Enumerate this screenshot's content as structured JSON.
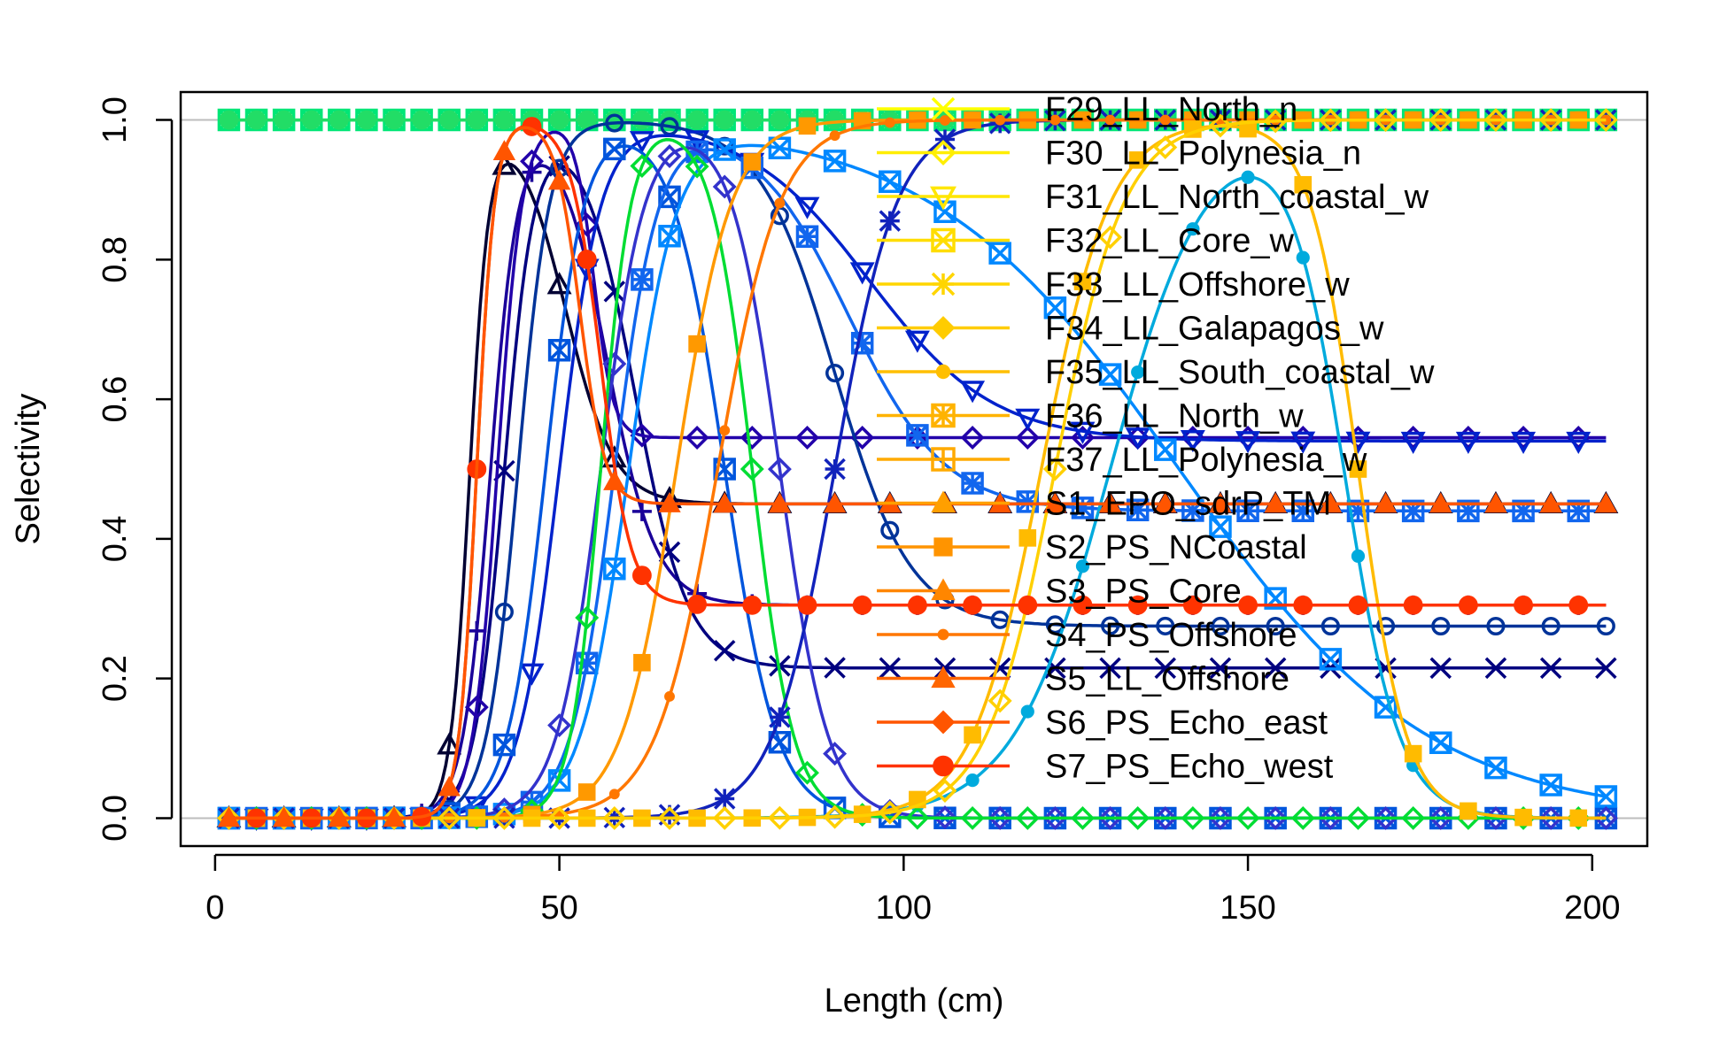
{
  "chart_data": {
    "type": "line",
    "title": "",
    "xlabel": "Length (cm)",
    "ylabel": "Selectivity",
    "xlim": [
      -5,
      208
    ],
    "ylim": [
      -0.04,
      1.04
    ],
    "xticks": [
      0,
      50,
      100,
      150,
      200
    ],
    "yticks": [
      0.0,
      0.2,
      0.4,
      0.6,
      0.8,
      1.0
    ],
    "xtick_labels": [
      "0",
      "50",
      "100",
      "150",
      "200"
    ],
    "ytick_labels": [
      "0.0",
      "0.2",
      "0.4",
      "0.6",
      "0.8",
      "1.0"
    ],
    "grid": "horizontal reference lines at 0 and 1",
    "legend_position": "top-right (inside plot)",
    "x": [
      2,
      6,
      10,
      14,
      18,
      22,
      26,
      30,
      34,
      38,
      42,
      46,
      50,
      54,
      58,
      62,
      66,
      70,
      74,
      78,
      82,
      86,
      90,
      94,
      98,
      102,
      106,
      110,
      114,
      118,
      122,
      126,
      130,
      134,
      138,
      142,
      146,
      150,
      154,
      158,
      162,
      166,
      170,
      174,
      178,
      182,
      186,
      190,
      194,
      198,
      202
    ],
    "legend_series": [
      {
        "name": "F29_LL_North_n",
        "color": "#ffff00",
        "marker": "x"
      },
      {
        "name": "F30_LL_Polynesia_n",
        "color": "#ffee00",
        "marker": "diamond"
      },
      {
        "name": "F31_LL_North_coastal_w",
        "color": "#ffe600",
        "marker": "tri-down"
      },
      {
        "name": "F32_LL_Core_w",
        "color": "#ffdd00",
        "marker": "square-x"
      },
      {
        "name": "F33_LL_Offshore_w",
        "color": "#ffd500",
        "marker": "star"
      },
      {
        "name": "F34_LL_Galapagos_w",
        "color": "#ffcc00",
        "marker": "diamond-filled"
      },
      {
        "name": "F35_LL_South_coastal_w",
        "color": "#ffbf00",
        "marker": "dot"
      },
      {
        "name": "F36_LL_North_w",
        "color": "#ffb300",
        "marker": "star-square"
      },
      {
        "name": "F37_LL_Polynesia_w",
        "color": "#ffaa00",
        "marker": "square-plus"
      },
      {
        "name": "S1_EPO_sdrP_TM",
        "color": "#ff9f00",
        "marker": "tri-filled"
      },
      {
        "name": "S2_PS_NCoastal",
        "color": "#ff9400",
        "marker": "square"
      },
      {
        "name": "S3_PS_Core",
        "color": "#ff8600",
        "marker": "tri-filled"
      },
      {
        "name": "S4_PS_Offshore",
        "color": "#ff7700",
        "marker": "dot-small"
      },
      {
        "name": "S5_LL_Offshore",
        "color": "#ff6600",
        "marker": "tri-filled"
      },
      {
        "name": "S6_PS_Echo_east",
        "color": "#ff5500",
        "marker": "diamond-filled"
      },
      {
        "name": "S7_PS_Echo_west",
        "color": "#ff3300",
        "marker": "circle-filled"
      }
    ],
    "series": [
      {
        "color": "#00e676",
        "marker": "square-x",
        "shape": "flat",
        "value": 1.0
      },
      {
        "color": "#22dd66",
        "marker": "circle-filled",
        "shape": "flat",
        "value": 1.0
      },
      {
        "color": "#000033",
        "marker": "tri",
        "shape": "dome",
        "asc_mid": 37,
        "asc_w": 1.4,
        "desc_mid": 51,
        "desc_w": 3.5,
        "plateau": 0.45
      },
      {
        "color": "#1a0099",
        "marker": "plus",
        "shape": "dome",
        "asc_mid": 40,
        "asc_w": 2.0,
        "desc_mid": 57,
        "desc_w": 3.5,
        "plateau": 0.305
      },
      {
        "color": "#00007f",
        "marker": "x",
        "shape": "dome",
        "asc_mid": 42,
        "asc_w": 2.2,
        "desc_mid": 61,
        "desc_w": 3.8,
        "plateau": 0.215
      },
      {
        "color": "#2200aa",
        "marker": "diamond",
        "shape": "dome",
        "asc_mid": 41,
        "asc_w": 1.8,
        "desc_mid": 55,
        "desc_w": 1.4,
        "plateau": 0.545
      },
      {
        "color": "#003399",
        "marker": "circle",
        "shape": "dome",
        "asc_mid": 44,
        "asc_w": 2.3,
        "desc_mid": 90,
        "desc_w": 5.5,
        "plateau": 0.275
      },
      {
        "color": "#0022cc",
        "marker": "tri-down",
        "shape": "dome",
        "asc_mid": 50,
        "asc_w": 3.0,
        "desc_mid": 95,
        "desc_w": 9.0,
        "plateau": 0.54
      },
      {
        "color": "#0055dd",
        "marker": "square-x",
        "shape": "dome",
        "asc_mid": 48,
        "asc_w": 2.8,
        "desc_mid": 74,
        "desc_w": 3.8,
        "plateau": 0.0
      },
      {
        "color": "#1166ee",
        "marker": "star-square",
        "shape": "dome",
        "asc_mid": 58,
        "asc_w": 3.2,
        "desc_mid": 92,
        "desc_w": 7.0,
        "plateau": 0.44
      },
      {
        "color": "#0088ff",
        "marker": "square-x",
        "shape": "dome",
        "asc_mid": 60,
        "asc_w": 3.5,
        "desc_mid": 140,
        "desc_w": 18.0,
        "plateau": 0.0
      },
      {
        "color": "#00aadd",
        "marker": "dot",
        "shape": "dome",
        "asc_mid": 130,
        "asc_w": 7.0,
        "desc_mid": 164,
        "desc_w": 4.0,
        "plateau": 0.0
      },
      {
        "color": "#3333cc",
        "marker": "diamond",
        "shape": "dome",
        "asc_mid": 56,
        "asc_w": 3.2,
        "desc_mid": 82,
        "desc_w": 3.5,
        "plateau": 0.0
      },
      {
        "color": "#00dd33",
        "marker": "diamond",
        "shape": "dome",
        "asc_mid": 56,
        "asc_w": 2.2,
        "desc_mid": 78,
        "desc_w": 3.0,
        "plateau": 0.0
      },
      {
        "color": "#1122bb",
        "marker": "star",
        "shape": "dome",
        "asc_mid": 90,
        "asc_w": 4.5,
        "desc_mid": 400,
        "desc_w": 1.0,
        "plateau": 1.0
      },
      {
        "color": "#ff9900",
        "marker": "square",
        "shape": "dome",
        "asc_mid": 67,
        "asc_w": 4.0,
        "desc_mid": 400,
        "desc_w": 1.0,
        "plateau": 1.0
      },
      {
        "color": "#ff7700",
        "marker": "dot-small",
        "shape": "dome",
        "asc_mid": 73,
        "asc_w": 4.5,
        "desc_mid": 400,
        "desc_w": 1.0,
        "plateau": 1.0
      },
      {
        "color": "#ffbb00",
        "marker": "square",
        "shape": "dome",
        "asc_mid": 120,
        "asc_w": 5.0,
        "desc_mid": 166,
        "desc_w": 3.5,
        "plateau": 0.0
      },
      {
        "color": "#ffd000",
        "marker": "diamond",
        "shape": "dome",
        "asc_mid": 122,
        "asc_w": 5.0,
        "desc_mid": 400,
        "desc_w": 1.0,
        "plateau": 1.0
      },
      {
        "color": "#ff3300",
        "marker": "circle-filled",
        "shape": "dome",
        "asc_mid": 38,
        "asc_w": 1.3,
        "desc_mid": 56,
        "desc_w": 2.2,
        "plateau": 0.305
      },
      {
        "color": "#ff5500",
        "marker": "tri-filled",
        "shape": "dome",
        "asc_mid": 38,
        "asc_w": 1.3,
        "desc_mid": 53,
        "desc_w": 1.8,
        "plateau": 0.45
      }
    ]
  }
}
